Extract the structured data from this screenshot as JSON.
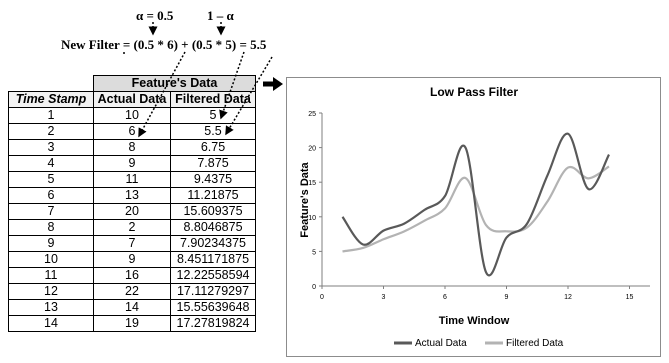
{
  "formula": {
    "alpha_label": "α = 0.5",
    "one_minus_alpha_label": "1 – α",
    "line": "New Filter = (0.5 * 6) + (0.5 * 5) = 5.5"
  },
  "table": {
    "group_header": "Feature's Data",
    "columns": [
      "Time Stamp",
      "Actual Data",
      "Filtered Data"
    ],
    "rows": [
      [
        "1",
        "10",
        "5"
      ],
      [
        "2",
        "6",
        "5.5"
      ],
      [
        "3",
        "8",
        "6.75"
      ],
      [
        "4",
        "9",
        "7.875"
      ],
      [
        "5",
        "11",
        "9.4375"
      ],
      [
        "6",
        "13",
        "11.21875"
      ],
      [
        "7",
        "20",
        "15.609375"
      ],
      [
        "8",
        "2",
        "8.8046875"
      ],
      [
        "9",
        "7",
        "7.90234375"
      ],
      [
        "10",
        "9",
        "8.451171875"
      ],
      [
        "11",
        "16",
        "12.22558594"
      ],
      [
        "12",
        "22",
        "17.11279297"
      ],
      [
        "13",
        "14",
        "15.55639648"
      ],
      [
        "14",
        "19",
        "17.27819824"
      ]
    ]
  },
  "arrow_icon": "right-arrow-icon",
  "chart_data": {
    "type": "line",
    "title": "Low Pass Filter",
    "xlabel": "Time Window",
    "ylabel": "Feature's Data",
    "xlim": [
      0,
      16
    ],
    "ylim": [
      0,
      25
    ],
    "xticks": [
      0,
      3,
      6,
      9,
      12,
      15
    ],
    "yticks": [
      0,
      5,
      10,
      15,
      20,
      25
    ],
    "grid": false,
    "legend_position": "bottom",
    "smooth": true,
    "x": [
      1,
      2,
      3,
      4,
      5,
      6,
      7,
      8,
      9,
      10,
      11,
      12,
      13,
      14
    ],
    "series": [
      {
        "name": "Actual Data",
        "color": "#595959",
        "values": [
          10,
          6,
          8,
          9,
          11,
          13,
          20,
          2,
          7,
          9,
          16,
          22,
          14,
          19
        ]
      },
      {
        "name": "Filtered Data",
        "color": "#b3b3b3",
        "values": [
          5,
          5.5,
          6.75,
          7.875,
          9.4375,
          11.21875,
          15.609375,
          8.8046875,
          7.90234375,
          8.451171875,
          12.22558594,
          17.11279297,
          15.55639648,
          17.27819824
        ]
      }
    ]
  }
}
